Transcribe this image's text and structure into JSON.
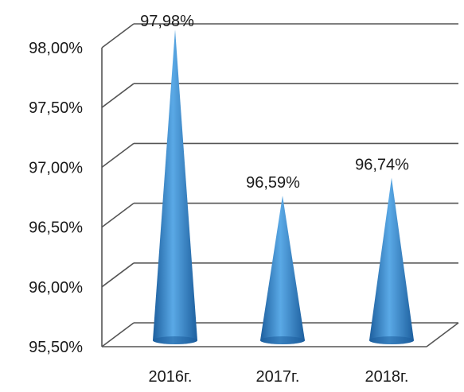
{
  "chart_data": {
    "type": "bar",
    "bar_shape": "3d-cone",
    "categories": [
      "2016г.",
      "2017г.",
      "2018г."
    ],
    "series": [
      {
        "values": [
          97.98,
          96.59,
          96.74
        ]
      }
    ],
    "data_labels": [
      "97,98%",
      "96,59%",
      "96,74%"
    ],
    "y_ticks": [
      {
        "value": 95.5,
        "label": "95,50%"
      },
      {
        "value": 96.0,
        "label": "96,00%"
      },
      {
        "value": 96.5,
        "label": "96,50%"
      },
      {
        "value": 97.0,
        "label": "97,00%"
      },
      {
        "value": 97.5,
        "label": "97,50%"
      },
      {
        "value": 98.0,
        "label": "98,00%"
      }
    ],
    "ylim": [
      95.5,
      98.0
    ],
    "grid": true,
    "legend": "none",
    "title": "",
    "xlabel": "",
    "ylabel": "",
    "colors": {
      "cone": "#2e7fc6",
      "cone_light": "#5aa9e6",
      "cone_dark": "#1d5f9e",
      "grid": "#555555"
    }
  }
}
